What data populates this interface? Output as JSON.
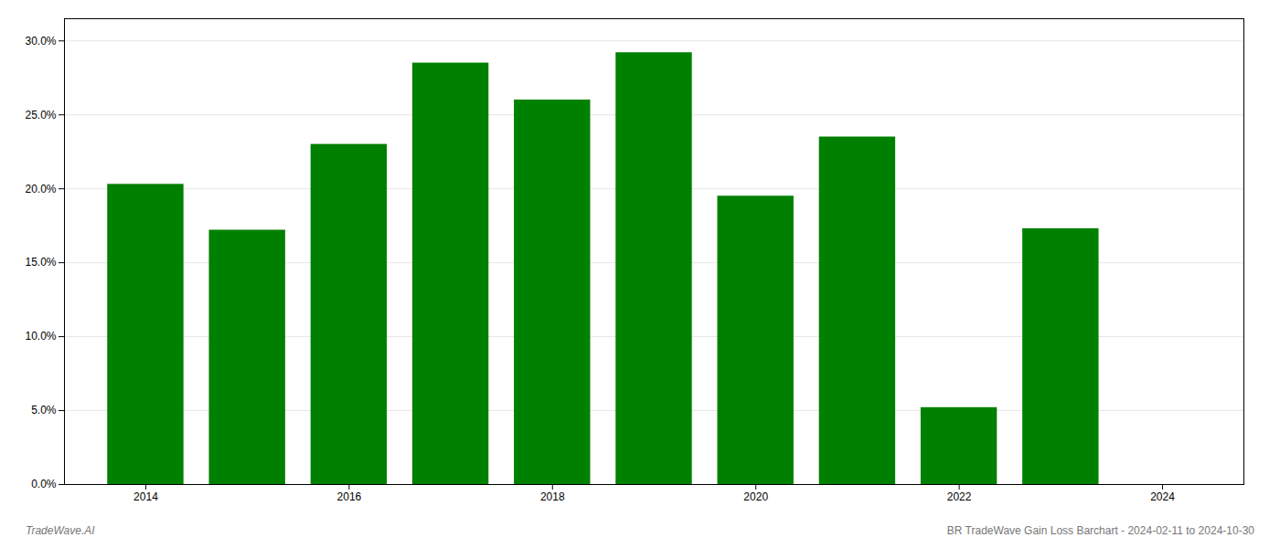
{
  "chart_data": {
    "type": "bar",
    "x": [
      2014,
      2015,
      2016,
      2017,
      2018,
      2019,
      2020,
      2021,
      2022,
      2023
    ],
    "values": [
      0.203,
      0.172,
      0.23,
      0.285,
      0.26,
      0.292,
      0.195,
      0.235,
      0.052,
      0.173
    ],
    "color": "#008000",
    "xlim": [
      2013.2,
      2024.8
    ],
    "xticks": [
      2014,
      2016,
      2018,
      2020,
      2022,
      2024
    ],
    "ylim": [
      0,
      0.315
    ],
    "yticks": [
      {
        "value": 0.0,
        "label": "0.0%"
      },
      {
        "value": 0.05,
        "label": "5.0%"
      },
      {
        "value": 0.1,
        "label": "10.0%"
      },
      {
        "value": 0.15,
        "label": "15.0%"
      },
      {
        "value": 0.2,
        "label": "20.0%"
      },
      {
        "value": 0.25,
        "label": "25.0%"
      },
      {
        "value": 0.3,
        "label": "30.0%"
      }
    ],
    "grid": true,
    "annotations": [
      "TradeWave.AI",
      "BR TradeWave Gain Loss Barchart - 2024-02-11 to 2024-10-30"
    ]
  }
}
